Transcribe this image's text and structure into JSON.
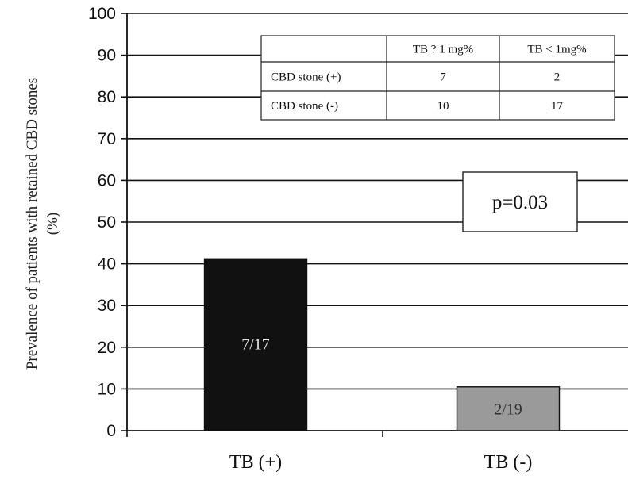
{
  "chart_data": {
    "type": "bar",
    "categories": [
      "TB (+)",
      "TB (-)"
    ],
    "values": [
      41.2,
      10.5
    ],
    "bar_labels": [
      "7/17",
      "2/19"
    ],
    "bar_colors": [
      "#111111",
      "#9a9a9a"
    ],
    "bar_label_colors": [
      "#e6e6e6",
      "#333333"
    ],
    "ylabel_lines": [
      "Prevalence of patients with retained CBD stones",
      "(%)"
    ],
    "xlabel": "",
    "ylim": [
      0,
      100
    ],
    "yticks": [
      0,
      10,
      20,
      30,
      40,
      50,
      60,
      70,
      80,
      90,
      100
    ],
    "grid": true,
    "annotation": "p=0.03",
    "table": {
      "header": [
        "",
        "TB ? 1 mg%",
        "TB < 1mg%"
      ],
      "rows": [
        [
          "CBD stone (+)",
          "7",
          "2"
        ],
        [
          "CBD stone (-)",
          "10",
          "17"
        ]
      ]
    }
  }
}
